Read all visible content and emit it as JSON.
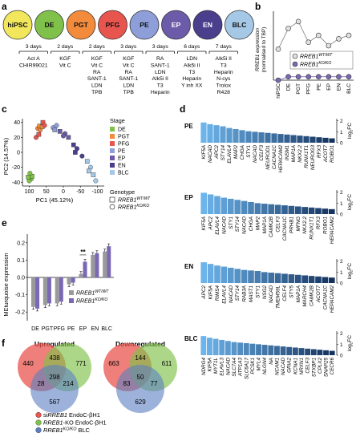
{
  "panels": {
    "a": "a",
    "b": "b",
    "c": "c",
    "d": "d",
    "e": "e",
    "f": "f"
  },
  "panel_a": {
    "stages": [
      "hiPSC",
      "DE",
      "PGT",
      "PFG",
      "PE",
      "EP",
      "EN",
      "BLC"
    ],
    "stage_colors": [
      "#f2e75c",
      "#7fc14a",
      "#f28b3c",
      "#e8544e",
      "#8e9ed8",
      "#6b5ba8",
      "#4a3f8c",
      "#a5c8e6"
    ],
    "durations": [
      "3 days",
      "2 days",
      "2 days",
      "3 days",
      "3 days",
      "6 days",
      "7 days"
    ],
    "factors": [
      [
        "Act A",
        "CHIR99021"
      ],
      [
        "KGF",
        "Vit C"
      ],
      [
        "KGF",
        "Vit C",
        "RA",
        "SANT-1",
        "LDN",
        "TPB"
      ],
      [
        "KGF",
        "Vit C",
        "RA",
        "SANT-1",
        "LDN",
        "TPB"
      ],
      [
        "RA",
        "SANT-1",
        "LDN",
        "Alk5i II",
        "T3",
        "Heparin"
      ],
      [
        "LDN",
        "Alk5i II",
        "T3",
        "Heparin",
        "Y inh XX"
      ],
      [
        "Alk5i II",
        "T3",
        "Heparin",
        "N-cys",
        "Trolox",
        "R428"
      ]
    ]
  },
  "panel_b": {
    "ylabel": "RREB1 expression",
    "ylabel2": "(normalised to TBP)",
    "legend": [
      "RREB1WT/WT",
      "RREB1KO/KO"
    ],
    "legend_main": "RREB1",
    "legend_sup": [
      "WT/WT",
      "KO/KO"
    ],
    "colors": {
      "wt": "#e0e0e0",
      "ko": "#7b68b5"
    },
    "chart_data": {
      "type": "line",
      "categories": [
        "hiPSC",
        "DE",
        "PGT",
        "PFG",
        "PE",
        "EP",
        "EN",
        "BLC"
      ],
      "series": [
        {
          "name": "RREB1WT/WT",
          "values": [
            9,
            15,
            17,
            11,
            13,
            10,
            12,
            13
          ]
        },
        {
          "name": "RREB1KO/KO",
          "values": [
            0,
            1,
            1,
            1,
            1,
            1,
            1,
            1
          ]
        }
      ],
      "ylim": [
        0,
        20
      ]
    }
  },
  "panel_c": {
    "xlabel": "PC1 (45.12%)",
    "ylabel": "PC2 (14.57%)",
    "xticks": [
      "100",
      "50",
      "0",
      "-50",
      "-100"
    ],
    "yticks": [
      "40",
      "20",
      "0",
      "-20",
      "-40"
    ],
    "stage_title": "Stage",
    "stages": [
      "DE",
      "PGT",
      "PFG",
      "PE",
      "EP",
      "EN",
      "BLC"
    ],
    "stage_colors": [
      "#7fc14a",
      "#f28b3c",
      "#e8544e",
      "#8e9ed8",
      "#6b5ba8",
      "#4a3f8c",
      "#a5c8e6"
    ],
    "genotype_title": "Genotype",
    "genotype_main": "RREB1",
    "genotype_sup": [
      "WT/WT",
      "KO/KO"
    ],
    "chart_data": {
      "type": "scatter",
      "xlim": [
        120,
        -120
      ],
      "ylim": [
        -45,
        45
      ],
      "points": [
        {
          "stage": "DE",
          "pc1": 95,
          "pc2": -35
        },
        {
          "stage": "DE",
          "pc1": 100,
          "pc2": -38
        },
        {
          "stage": "DE",
          "pc1": 92,
          "pc2": -32
        },
        {
          "stage": "DE",
          "pc1": 98,
          "pc2": -28
        },
        {
          "stage": "DE",
          "pc1": 103,
          "pc2": -33
        },
        {
          "stage": "PGT",
          "pc1": 75,
          "pc2": 32
        },
        {
          "stage": "PGT",
          "pc1": 70,
          "pc2": 35
        },
        {
          "stage": "PGT",
          "pc1": 68,
          "pc2": 30
        },
        {
          "stage": "PGT",
          "pc1": 62,
          "pc2": 34
        },
        {
          "stage": "PFG",
          "pc1": 80,
          "pc2": 20
        },
        {
          "stage": "PFG",
          "pc1": 60,
          "pc2": 40
        },
        {
          "stage": "PFG",
          "pc1": 55,
          "pc2": 36
        },
        {
          "stage": "PFG",
          "pc1": 72,
          "pc2": 24
        },
        {
          "stage": "PE",
          "pc1": 30,
          "pc2": 33
        },
        {
          "stage": "PE",
          "pc1": 25,
          "pc2": 30
        },
        {
          "stage": "PE",
          "pc1": 20,
          "pc2": 36
        },
        {
          "stage": "EP",
          "pc1": 10,
          "pc2": 28
        },
        {
          "stage": "EP",
          "pc1": -5,
          "pc2": 25
        },
        {
          "stage": "EP",
          "pc1": -15,
          "pc2": 20
        },
        {
          "stage": "EP",
          "pc1": 0,
          "pc2": 22
        },
        {
          "stage": "EN",
          "pc1": -30,
          "pc2": 10
        },
        {
          "stage": "EN",
          "pc1": -40,
          "pc2": 5
        },
        {
          "stage": "EN",
          "pc1": -35,
          "pc2": 0
        },
        {
          "stage": "EN",
          "pc1": -55,
          "pc2": -5
        },
        {
          "stage": "BLC",
          "pc1": -70,
          "pc2": -12
        },
        {
          "stage": "BLC",
          "pc1": -80,
          "pc2": -20
        },
        {
          "stage": "BLC",
          "pc1": -88,
          "pc2": -30
        },
        {
          "stage": "BLC",
          "pc1": -95,
          "pc2": -38
        },
        {
          "stage": "BLC",
          "pc1": -75,
          "pc2": -25
        }
      ]
    }
  },
  "panel_d": {
    "ylabel": "log2FC",
    "ylabel_main": "log",
    "ylabel_sub": "2",
    "ylabel_tail": "FC",
    "yticks": [
      "2",
      "1",
      "0"
    ],
    "chart_data": [
      {
        "type": "bar",
        "title": "PE",
        "categories": [
          "KIF5A",
          "NACAD",
          "APC2",
          "STY14",
          "ELAVL4",
          "MAP2",
          "CHGA",
          "STY1",
          "NACAD",
          "CELF3",
          "NEUROD1",
          "CACNA1C",
          "HEPACAM2",
          "INSM1",
          "MAP1A",
          "NKX2.2",
          "RUNX1T1",
          "NEUROG3",
          "RFX3",
          "ACOT7",
          "ROBO1"
        ],
        "values": [
          1.85,
          1.7,
          1.6,
          1.5,
          1.35,
          1.25,
          1.15,
          1.05,
          1.0,
          0.95,
          0.9,
          0.85,
          0.8,
          0.75,
          0.7,
          0.65,
          0.6,
          0.55,
          0.5,
          0.45,
          0.4
        ]
      },
      {
        "type": "bar",
        "title": "EP",
        "categories": [
          "KIF5A",
          "APC2",
          "ELAVL4",
          "NACAD",
          "STY1",
          "STY14",
          "NACAD",
          "CHGA",
          "MAP2",
          "MAP1A",
          "CAMK2B",
          "CELF3",
          "CACNA1C",
          "PRHB1",
          "MFNG",
          "NKX2.2",
          "RUNX1T1",
          "RFX3",
          "ROBO1",
          "HEPACAM2"
        ],
        "values": [
          1.95,
          1.8,
          1.65,
          1.5,
          1.4,
          1.3,
          1.2,
          1.1,
          1.0,
          0.95,
          0.9,
          0.85,
          0.8,
          0.75,
          0.7,
          0.65,
          0.6,
          0.55,
          0.5,
          0.45
        ]
      },
      {
        "type": "bar",
        "title": "EN",
        "categories": [
          "APC2",
          "KIF5A",
          "RIMS4",
          "ELAVL4",
          "NACAD",
          "STY14",
          "RAB3A",
          "MAST1",
          "STY1",
          "NSG2",
          "NACAD",
          "TMEM59L",
          "CELF4",
          "STY5",
          "MAP1A",
          "MARCH4",
          "CAMK2B",
          "ACOT7",
          "CACNA1C",
          "HEPACAM2"
        ],
        "values": [
          1.9,
          1.75,
          1.6,
          1.5,
          1.4,
          1.3,
          1.2,
          1.15,
          1.1,
          1.0,
          0.95,
          0.9,
          0.85,
          0.8,
          0.75,
          0.7,
          0.65,
          0.6,
          0.55,
          0.5
        ]
      },
      {
        "type": "bar",
        "title": "BLC",
        "categories": [
          "NDRG4",
          "KIF5A",
          "MYT1L",
          "ELAVL3",
          "NACAD",
          "SLC7A4",
          "ATP1A3",
          "SLC6A17",
          "PCSK1",
          "MYL4",
          "NLGN4",
          "NA",
          "NCAM1",
          "NACAD",
          "GRIA2",
          "KCNA1",
          "NRXN1",
          "CELF3",
          "STXBP1",
          "CPLX2",
          "SNAP25",
          "CECR6"
        ],
        "values": [
          1.75,
          1.6,
          1.5,
          1.4,
          1.3,
          1.2,
          1.15,
          1.1,
          1.05,
          1.0,
          0.95,
          0.9,
          0.85,
          0.8,
          0.75,
          0.7,
          0.65,
          0.6,
          0.55,
          0.5,
          0.45,
          0.4
        ]
      }
    ]
  },
  "panel_e": {
    "ylabel": "MEturquoise expression",
    "yticks": [
      "0.2",
      "0.1",
      "0.0",
      "-0.1",
      "-0.2"
    ],
    "significance": "**",
    "legend_main": "RREB1",
    "legend_sup": [
      "WT/WT",
      "KO/KO"
    ],
    "colors": {
      "wt": "#9a9a9a",
      "ko": "#7b68b5"
    },
    "chart_data": {
      "type": "bar",
      "categories": [
        "DE",
        "PGT",
        "PFG",
        "PE",
        "EP",
        "EN",
        "BLC"
      ],
      "series": [
        {
          "name": "RREB1WT/WT",
          "values": [
            -0.17,
            -0.16,
            -0.15,
            -0.04,
            0.02,
            0.13,
            0.15
          ]
        },
        {
          "name": "RREB1KO/KO",
          "values": [
            -0.18,
            -0.15,
            -0.14,
            -0.03,
            0.09,
            0.14,
            0.18
          ]
        }
      ],
      "ylim": [
        -0.25,
        0.25
      ]
    }
  },
  "panel_f": {
    "up_title": "Upregulated",
    "down_title": "Downregulated",
    "up_counts": {
      "a": "440",
      "b": "771",
      "c": "567",
      "ab": "438",
      "ac": "28",
      "bc": "214",
      "abc": "298"
    },
    "down_counts": {
      "a": "663",
      "b": "611",
      "c": "629",
      "ab": "144",
      "ac": "83",
      "bc": "77",
      "abc": "50"
    },
    "colors": {
      "a": "#e8544e",
      "b": "#7fc14a",
      "c": "#5b7ec2"
    },
    "legend": [
      {
        "italic": "si",
        "main": "RREB1",
        "tail": " EndoC-βH1"
      },
      {
        "italic": "",
        "main": "RREB1",
        "tail": "-KO EndoC-βH1"
      },
      {
        "italic": "",
        "main": "RREB1",
        "sup": "KO/KO",
        "tail": " BLC"
      }
    ]
  }
}
